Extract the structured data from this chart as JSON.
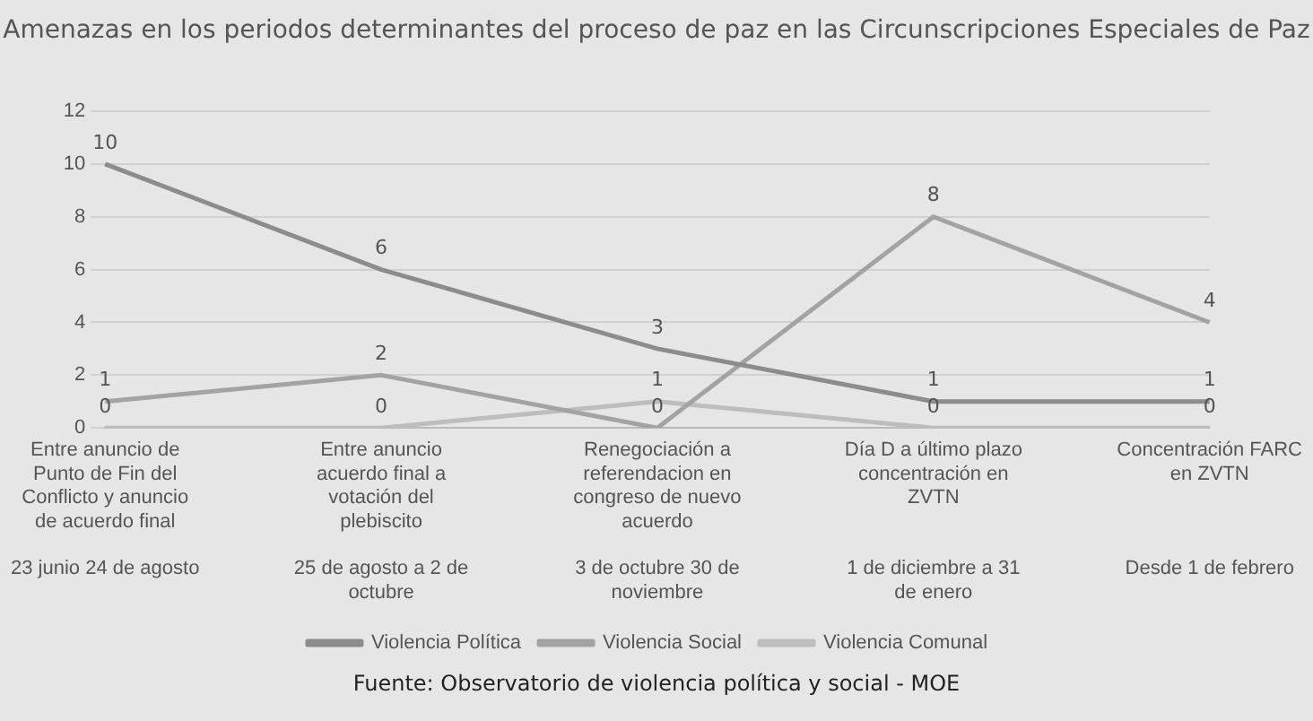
{
  "chart_data": {
    "type": "line",
    "title": "Amenazas en los periodos determinantes del proceso de paz en las Circunscripciones Especiales de Paz",
    "categories": [
      "Entre anuncio de Punto de Fin del Conflicto y anuncio de acuerdo final\n23 junio 24 de agosto",
      "Entre anuncio acuerdo final a votación del plebiscito\n25 de agosto a 2 de octubre",
      "Renegociación a referendacion en congreso de nuevo acuerdo\n3 de octubre 30 de noviembre",
      "Día D a último plazo concentración en ZVTN\n1 de diciembre a 31 de enero",
      "Concentración FARC en ZVTN\nDesde 1 de febrero"
    ],
    "series": [
      {
        "name": "Violencia Política",
        "color": "#8c8c8c",
        "values": [
          10,
          6,
          3,
          1,
          1
        ]
      },
      {
        "name": "Violencia Social",
        "color": "#a3a3a3",
        "values": [
          1,
          2,
          0,
          8,
          4
        ]
      },
      {
        "name": "Violencia Comunal",
        "color": "#bdbdbd",
        "values": [
          0,
          0,
          1,
          0,
          0
        ]
      }
    ],
    "ylim": [
      0,
      12
    ],
    "yticks": [
      0,
      2,
      4,
      6,
      8,
      10,
      12
    ],
    "grid": "y",
    "legend": "bottom",
    "data_labels": true,
    "marker": "none",
    "annotations": [
      "Fuente: Observatorio de violencia política y social - MOE"
    ]
  }
}
